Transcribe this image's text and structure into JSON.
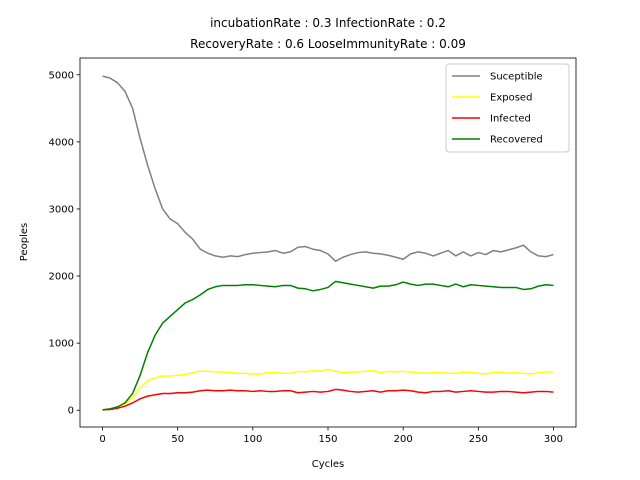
{
  "chart_data": {
    "type": "line",
    "title": [
      "incubationRate : 0.3 InfectionRate : 0.2",
      "RecoveryRate : 0.6 LooseImmunityRate : 0.09"
    ],
    "xlabel": "Cycles",
    "ylabel": "Peoples",
    "xlim": [
      -15,
      315
    ],
    "ylim": [
      -250,
      5250
    ],
    "xticks": [
      0,
      50,
      100,
      150,
      200,
      250,
      300
    ],
    "yticks": [
      0,
      1000,
      2000,
      3000,
      4000,
      5000
    ],
    "grid": false,
    "legend_position": "top-right",
    "x": [
      0,
      5,
      10,
      15,
      20,
      25,
      30,
      35,
      40,
      45,
      50,
      55,
      60,
      65,
      70,
      75,
      80,
      85,
      90,
      95,
      100,
      105,
      110,
      115,
      120,
      125,
      130,
      135,
      140,
      145,
      150,
      155,
      160,
      165,
      170,
      175,
      180,
      185,
      190,
      195,
      200,
      205,
      210,
      215,
      220,
      225,
      230,
      235,
      240,
      245,
      250,
      255,
      260,
      265,
      270,
      275,
      280,
      285,
      290,
      295,
      300
    ],
    "series": [
      {
        "name": "Suceptible",
        "color": "#808080",
        "values": [
          4980,
          4950,
          4880,
          4750,
          4500,
          4050,
          3650,
          3300,
          3000,
          2850,
          2780,
          2650,
          2550,
          2400,
          2340,
          2300,
          2280,
          2300,
          2290,
          2320,
          2340,
          2350,
          2360,
          2380,
          2340,
          2360,
          2430,
          2440,
          2400,
          2380,
          2330,
          2220,
          2280,
          2320,
          2350,
          2360,
          2340,
          2330,
          2310,
          2280,
          2250,
          2330,
          2360,
          2340,
          2300,
          2340,
          2380,
          2300,
          2360,
          2300,
          2350,
          2320,
          2380,
          2360,
          2390,
          2420,
          2460,
          2360,
          2300,
          2290,
          2320
        ]
      },
      {
        "name": "Exposed",
        "color": "#ffff00",
        "values": [
          10,
          20,
          40,
          90,
          190,
          330,
          440,
          480,
          510,
          510,
          520,
          530,
          560,
          580,
          580,
          570,
          570,
          560,
          550,
          550,
          540,
          540,
          560,
          560,
          550,
          550,
          580,
          570,
          590,
          580,
          610,
          580,
          560,
          570,
          570,
          580,
          590,
          560,
          580,
          570,
          580,
          570,
          560,
          550,
          560,
          560,
          550,
          550,
          570,
          560,
          550,
          540,
          560,
          570,
          550,
          560,
          550,
          540,
          560,
          570,
          570
        ]
      },
      {
        "name": "Infected",
        "color": "#ff0000",
        "values": [
          5,
          10,
          30,
          60,
          110,
          170,
          210,
          230,
          250,
          250,
          260,
          260,
          270,
          290,
          300,
          290,
          290,
          300,
          290,
          290,
          280,
          290,
          280,
          280,
          290,
          290,
          260,
          270,
          280,
          270,
          280,
          310,
          300,
          280,
          270,
          280,
          290,
          270,
          290,
          290,
          300,
          290,
          270,
          260,
          280,
          280,
          290,
          270,
          280,
          290,
          280,
          270,
          270,
          280,
          280,
          270,
          260,
          270,
          280,
          280,
          270
        ]
      },
      {
        "name": "Recovered",
        "color": "#008000",
        "values": [
          5,
          20,
          50,
          110,
          250,
          520,
          860,
          1120,
          1300,
          1400,
          1500,
          1600,
          1650,
          1720,
          1800,
          1840,
          1860,
          1860,
          1860,
          1870,
          1870,
          1860,
          1850,
          1840,
          1860,
          1860,
          1820,
          1810,
          1780,
          1800,
          1830,
          1920,
          1900,
          1880,
          1860,
          1840,
          1820,
          1850,
          1850,
          1870,
          1910,
          1880,
          1860,
          1880,
          1880,
          1860,
          1840,
          1880,
          1840,
          1870,
          1860,
          1850,
          1840,
          1830,
          1830,
          1830,
          1800,
          1810,
          1850,
          1870,
          1860
        ]
      }
    ]
  }
}
